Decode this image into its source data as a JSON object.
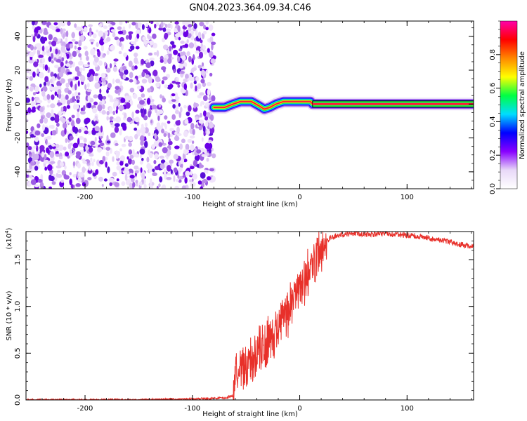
{
  "title": "GN04.2023.364.09.34.C46",
  "chart_data": [
    {
      "type": "heatmap",
      "title": "GN04.2023.364.09.34.C46",
      "xlabel": "Height of straight line (km)",
      "ylabel": "Frequency (Hz)",
      "xlim": [
        -255,
        162
      ],
      "ylim": [
        -50,
        49
      ],
      "x_ticks": [
        -200,
        -100,
        0,
        100
      ],
      "x_tick_labels": [
        "-200",
        "-100",
        "0",
        "100"
      ],
      "y_ticks": [
        -40,
        -20,
        0,
        20,
        40
      ],
      "y_tick_labels": [
        "-40",
        "-20",
        "0",
        "20",
        "40"
      ],
      "noise_region_x": [
        -255,
        -80
      ],
      "signal_path": [
        {
          "x": -80,
          "y": -2
        },
        {
          "x": -70,
          "y": -2
        },
        {
          "x": -62,
          "y": 0
        },
        {
          "x": -55,
          "y": 1.5
        },
        {
          "x": -45,
          "y": 1.5
        },
        {
          "x": -38,
          "y": -1
        },
        {
          "x": -33,
          "y": -3
        },
        {
          "x": -28,
          "y": -2
        },
        {
          "x": -22,
          "y": 0
        },
        {
          "x": -15,
          "y": 1.5
        },
        {
          "x": 0,
          "y": 1.5
        },
        {
          "x": 10,
          "y": 1.5
        },
        {
          "x": 12,
          "y": 0
        },
        {
          "x": 162,
          "y": 0
        }
      ],
      "colorbar": {
        "label": "Normalized spectral amplitude",
        "range": [
          0,
          1
        ],
        "ticks": [
          0.0,
          0.2,
          0.4,
          0.6,
          0.8
        ],
        "tick_labels": [
          "0.0",
          "0.2",
          "0.4",
          "0.6",
          "0.8"
        ],
        "colors": [
          "#ffffff",
          "#e8d8f8",
          "#8800ff",
          "#0000ff",
          "#00ddff",
          "#00ff44",
          "#ffff00",
          "#ff8800",
          "#ff0000",
          "#ff00aa"
        ]
      },
      "grid": false
    },
    {
      "type": "line",
      "xlabel": "Height of straight line (km)",
      "ylabel": "SNR (10 * v/v)",
      "scale_label": "(x10",
      "scale_exponent": "4",
      "scale_suffix": ")",
      "xlim": [
        -255,
        162
      ],
      "ylim": [
        0,
        1.8
      ],
      "x_ticks": [
        -200,
        -100,
        0,
        100
      ],
      "x_tick_labels": [
        "-200",
        "-100",
        "0",
        "100"
      ],
      "y_ticks": [
        0.0,
        0.5,
        1.0,
        1.5
      ],
      "y_tick_labels": [
        "0.0",
        "0.5",
        "1.0",
        "1.5"
      ],
      "series": [
        {
          "name": "SNR",
          "color": "#e8302a",
          "x": [
            -255,
            -200,
            -150,
            -100,
            -70,
            -62,
            -58,
            -50,
            -45,
            -40,
            -35,
            -30,
            -25,
            -20,
            -15,
            -10,
            -5,
            0,
            5,
            10,
            15,
            20,
            25,
            30,
            40,
            50,
            60,
            70,
            80,
            90,
            100,
            110,
            120,
            130,
            140,
            150,
            162
          ],
          "y": [
            0.0,
            0.0,
            0.0,
            0.01,
            0.02,
            0.05,
            0.4,
            0.35,
            0.42,
            0.5,
            0.55,
            0.62,
            0.7,
            0.78,
            0.88,
            0.95,
            1.05,
            1.15,
            1.28,
            1.4,
            1.52,
            1.62,
            1.7,
            1.74,
            1.77,
            1.78,
            1.77,
            1.77,
            1.78,
            1.77,
            1.76,
            1.75,
            1.73,
            1.71,
            1.69,
            1.66,
            1.64
          ]
        }
      ],
      "grid": false
    }
  ]
}
